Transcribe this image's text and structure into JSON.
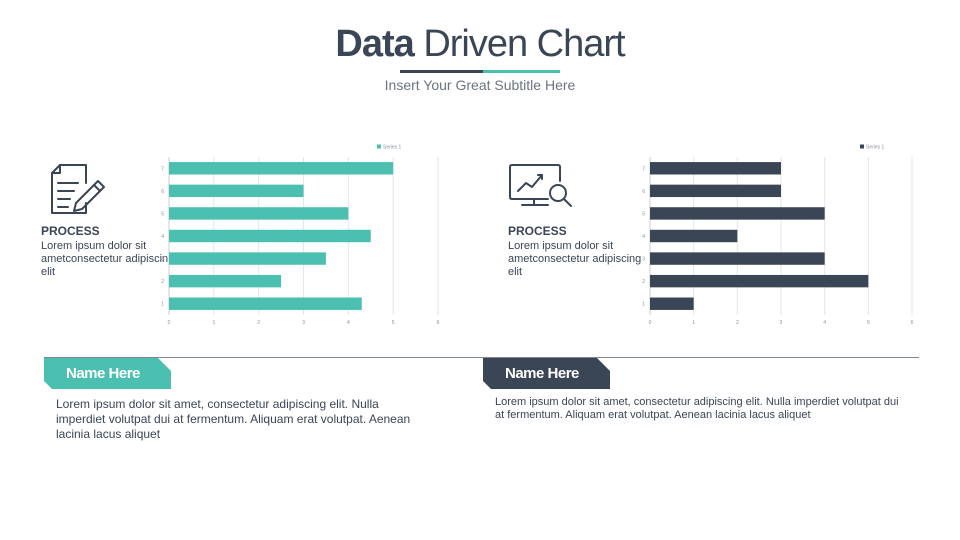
{
  "header": {
    "title_bold": "Data",
    "title_light": "Driven Chart",
    "subtitle": "Insert  Your Great Subtitle Here"
  },
  "colors": {
    "teal": "#4bbfb0",
    "dark": "#3a4556",
    "grid": "#e3e6ea",
    "axis": "#c9ced4",
    "tick": "#8a929b"
  },
  "left_panel": {
    "icon": "document-pen-icon",
    "process_title": "PROCESS",
    "process_text": "Lorem ipsum dolor sit ametconsectetur adipiscing elit",
    "name_label": "Name Here",
    "body": "Lorem ipsum dolor sit amet, consectetur adipiscing elit. Nulla imperdiet volutpat dui at fermentum. Aliquam erat volutpat. Aenean lacinia lacus aliquet"
  },
  "right_panel": {
    "icon": "monitor-chart-magnifier-icon",
    "process_title": "PROCESS",
    "process_text": "Lorem ipsum dolor sit ametconsectetur adipiscing elit",
    "name_label": "Name Here",
    "body": "Lorem ipsum dolor sit amet, consectetur adipiscing elit. Nulla imperdiet volutpat dui at fermentum. Aliquam erat volutpat. Aenean lacinia lacus aliquet"
  },
  "chart_data": [
    {
      "type": "bar",
      "orientation": "horizontal",
      "categories": [
        "1",
        "2",
        "3",
        "4",
        "5",
        "6",
        "7"
      ],
      "series": [
        {
          "name": "Series 1",
          "values": [
            4.3,
            2.5,
            3.5,
            4.5,
            4,
            3,
            5
          ]
        }
      ],
      "xlim": [
        0,
        6
      ],
      "xticks": [
        "0",
        "1",
        "2",
        "3",
        "4",
        "5",
        "6"
      ],
      "grid": true,
      "legend": "top-right",
      "color": "#4bbfb0"
    },
    {
      "type": "bar",
      "orientation": "horizontal",
      "categories": [
        "1",
        "2",
        "3",
        "4",
        "5",
        "6",
        "7"
      ],
      "series": [
        {
          "name": "Series 1",
          "values": [
            1,
            5,
            4,
            2,
            4,
            3,
            3
          ]
        }
      ],
      "xlim": [
        0,
        6
      ],
      "xticks": [
        "0",
        "1",
        "2",
        "3",
        "4",
        "5",
        "6"
      ],
      "grid": true,
      "legend": "top-right",
      "color": "#3a4556"
    }
  ]
}
